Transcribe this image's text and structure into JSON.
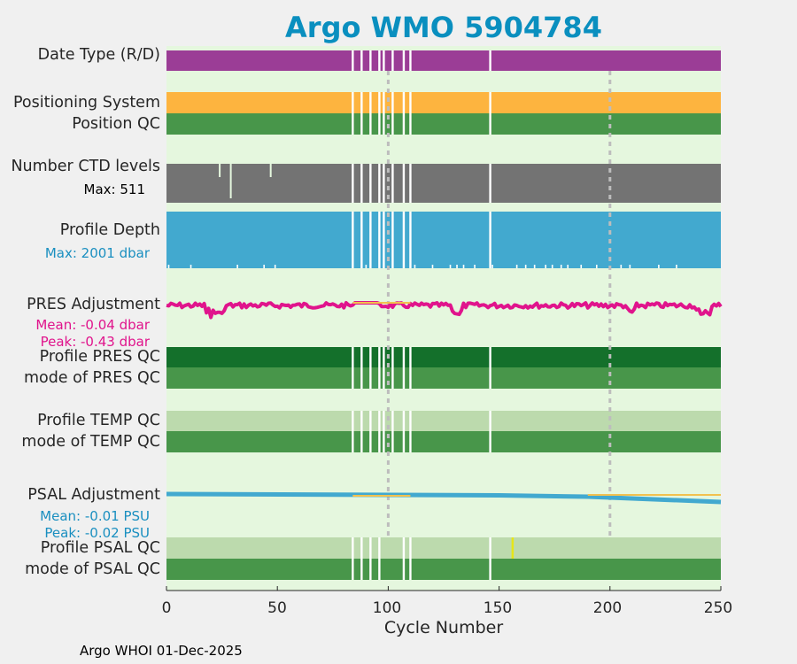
{
  "chart_data": {
    "type": "table",
    "title": "Argo WMO 5904784",
    "xlabel": "Cycle Number",
    "xlim": [
      0,
      250
    ],
    "xticks": [
      "0",
      "50",
      "100",
      "150",
      "200",
      "250"
    ],
    "reference_lines_x": [
      100,
      200
    ],
    "missing_cycles": [
      84,
      88,
      92,
      96,
      98,
      102,
      107,
      110,
      146
    ],
    "rows": [
      {
        "label": "Date Type (R/D)",
        "color": "#9b3d96"
      },
      {
        "label": "Positioning System",
        "color": "#fdb43f"
      },
      {
        "label": "Position QC",
        "color": "#48964a"
      },
      {
        "label": "Number CTD levels",
        "color": "#737373"
      },
      {
        "label": "Profile Depth",
        "color": "#42a9cf"
      },
      {
        "label": "PRES Adjustment",
        "color": "#e0148c"
      },
      {
        "label": "Profile PRES QC",
        "color": "#14702b"
      },
      {
        "label": "mode of PRES QC",
        "color": "#48964a"
      },
      {
        "label": "Profile TEMP QC",
        "color": "#bcdaad"
      },
      {
        "label": "mode of TEMP QC",
        "color": "#48964a"
      },
      {
        "label": "PSAL Adjustment",
        "color": "#42a9cf"
      },
      {
        "label": "Profile PSAL QC",
        "color": "#bcdaad"
      },
      {
        "label": "mode of PSAL QC",
        "color": "#48964a"
      }
    ],
    "ctd_levels_max": "Max: 511",
    "profile_depth_max": "Max: 2001 dbar",
    "pres_adjustment": {
      "mean": "Mean: -0.04 dbar",
      "peak": "Peak: -0.43 dbar",
      "approx_range_dbar": [
        -0.43,
        0.05
      ]
    },
    "psal_adjustment": {
      "mean": "Mean: -0.01 PSU",
      "peak": "Peak: -0.02 PSU",
      "start_psu": -0.005,
      "end_psu": -0.02
    }
  },
  "colors": {
    "background": "#f0f0f0",
    "panel": "#e5f7de",
    "accent": "#0a8fbf"
  },
  "footer": "Argo WHOI 01-Dec-2025"
}
